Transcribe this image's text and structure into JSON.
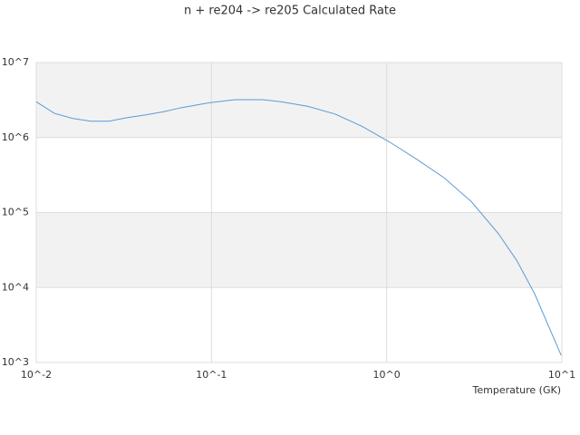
{
  "chart_data": {
    "type": "line",
    "title": "n + re204 -> re205 Calculated Rate",
    "x_label": "Temperature (GK)",
    "x_log": true,
    "y_log": true,
    "xlim": [
      0.01,
      10
    ],
    "ylim": [
      1000,
      10000000
    ],
    "xticks": [
      {
        "value": 0.01,
        "label": "10^-2"
      },
      {
        "value": 0.1,
        "label": "10^-1"
      },
      {
        "value": 1,
        "label": "10^0"
      },
      {
        "value": 10,
        "label": "10^1"
      }
    ],
    "yticks": [
      {
        "value": 1000,
        "label": "10^3"
      },
      {
        "value": 10000,
        "label": "10^4"
      },
      {
        "value": 100000,
        "label": "10^5"
      },
      {
        "value": 1000000,
        "label": "10^6"
      },
      {
        "value": 10000000,
        "label": "10^7"
      }
    ],
    "grid": true,
    "band_color": "#f2f2f2",
    "grid_color": "#dddddd",
    "x": [
      0.01,
      0.0127,
      0.0161,
      0.0204,
      0.026,
      0.0329,
      0.0418,
      0.053,
      0.0673,
      0.0962,
      0.137,
      0.196,
      0.249,
      0.356,
      0.509,
      0.728,
      1.04,
      1.49,
      2.13,
      3.04,
      4.35,
      5.52,
      7.0,
      9.9
    ],
    "series": [
      {
        "color": "#5b9bd5",
        "values": [
          3000000,
          2100000,
          1800000,
          1650000,
          1650000,
          1840000,
          2000000,
          2200000,
          2500000,
          2900000,
          3200000,
          3200000,
          3000000,
          2600000,
          2050000,
          1400000,
          870000,
          510000,
          290000,
          140000,
          52000,
          23000,
          8200,
          1250
        ]
      }
    ]
  }
}
